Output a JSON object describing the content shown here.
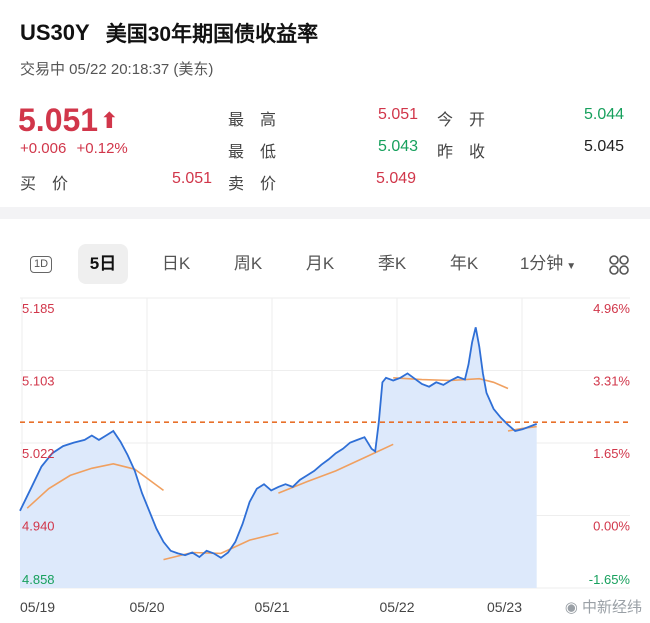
{
  "header": {
    "symbol": "US30Y",
    "name": "美国30年期国债收益率",
    "status": "交易中 05/22 20:18:37 (美东)"
  },
  "quote": {
    "price": "5.051",
    "arrow": "⬆",
    "change": "+0.006",
    "change_pct": "+0.12%",
    "high_label": "最　高",
    "high": "5.051",
    "open_label": "今　开",
    "open": "5.044",
    "low_label": "最　低",
    "low": "5.043",
    "prev_close_label": "昨　收",
    "prev_close": "5.045",
    "bid_label": "买　价",
    "bid": "5.051",
    "ask_label": "卖　价",
    "ask": "5.049"
  },
  "tabs": [
    {
      "label": "1D",
      "selected": false
    },
    {
      "label": "5日",
      "selected": true
    },
    {
      "label": "日K",
      "selected": false
    },
    {
      "label": "周K",
      "selected": false
    },
    {
      "label": "月K",
      "selected": false
    },
    {
      "label": "季K",
      "selected": false
    },
    {
      "label": "年K",
      "selected": false
    },
    {
      "label": "1分钟",
      "selected": false
    }
  ],
  "colors": {
    "up": "#d1364a",
    "down": "#17a05d",
    "line": "#2f6fd6",
    "area": "#dde9fb",
    "ma": "#f0a060",
    "ref": "#e8702a"
  },
  "chart_data": {
    "type": "line",
    "x_labels": [
      "05/19",
      "05/20",
      "05/21",
      "05/22",
      "05/23"
    ],
    "y_left_ticks": [
      "5.185",
      "5.103",
      "5.022",
      "4.940",
      "4.858"
    ],
    "y_right_ticks": [
      "4.96%",
      "3.31%",
      "1.65%",
      "0.00%",
      "-1.65%"
    ],
    "ylim": [
      4.858,
      5.185
    ],
    "reference_line": 5.045,
    "price_series": [
      [
        0,
        4.945
      ],
      [
        3,
        4.97
      ],
      [
        6,
        4.995
      ],
      [
        9,
        5.01
      ],
      [
        12,
        5.018
      ],
      [
        15,
        5.022
      ],
      [
        18,
        5.025
      ],
      [
        20,
        5.03
      ],
      [
        22,
        5.025
      ],
      [
        24,
        5.03
      ],
      [
        26,
        5.035
      ],
      [
        28,
        5.023
      ],
      [
        30,
        5.008
      ],
      [
        32,
        4.99
      ],
      [
        34,
        4.965
      ],
      [
        36,
        4.945
      ],
      [
        38,
        4.925
      ],
      [
        40,
        4.91
      ],
      [
        42,
        4.9
      ],
      [
        44,
        4.897
      ],
      [
        46,
        4.895
      ],
      [
        48,
        4.898
      ],
      [
        50,
        4.893
      ],
      [
        52,
        4.9
      ],
      [
        54,
        4.897
      ],
      [
        56,
        4.892
      ],
      [
        58,
        4.898
      ],
      [
        60,
        4.91
      ],
      [
        62,
        4.93
      ],
      [
        64,
        4.955
      ],
      [
        66,
        4.97
      ],
      [
        68,
        4.975
      ],
      [
        70,
        4.968
      ],
      [
        72,
        4.972
      ],
      [
        74,
        4.975
      ],
      [
        76,
        4.972
      ],
      [
        78,
        4.98
      ],
      [
        80,
        4.985
      ],
      [
        82,
        4.99
      ],
      [
        84,
        4.997
      ],
      [
        86,
        5.003
      ],
      [
        88,
        5.01
      ],
      [
        90,
        5.015
      ],
      [
        92,
        5.022
      ],
      [
        94,
        5.025
      ],
      [
        96,
        5.028
      ],
      [
        98,
        5.015
      ],
      [
        99,
        5.012
      ],
      [
        100,
        5.045
      ],
      [
        101,
        5.09
      ],
      [
        102,
        5.095
      ],
      [
        104,
        5.092
      ],
      [
        106,
        5.095
      ],
      [
        108,
        5.1
      ],
      [
        110,
        5.094
      ],
      [
        112,
        5.088
      ],
      [
        114,
        5.085
      ],
      [
        116,
        5.09
      ],
      [
        118,
        5.087
      ],
      [
        120,
        5.092
      ],
      [
        122,
        5.096
      ],
      [
        124,
        5.093
      ],
      [
        125,
        5.11
      ],
      [
        126,
        5.135
      ],
      [
        127,
        5.152
      ],
      [
        128,
        5.13
      ],
      [
        129,
        5.1
      ],
      [
        130,
        5.078
      ],
      [
        132,
        5.06
      ],
      [
        134,
        5.05
      ],
      [
        136,
        5.042
      ],
      [
        138,
        5.035
      ],
      [
        140,
        5.037
      ],
      [
        142,
        5.04
      ],
      [
        144,
        5.043
      ]
    ],
    "ma_series": [
      [
        [
          2,
          4.948
        ],
        [
          8,
          4.97
        ],
        [
          14,
          4.985
        ],
        [
          20,
          4.993
        ],
        [
          26,
          4.998
        ],
        [
          32,
          4.992
        ],
        [
          40,
          4.968
        ]
      ],
      [
        [
          40,
          4.89
        ],
        [
          48,
          4.898
        ],
        [
          56,
          4.897
        ],
        [
          64,
          4.912
        ],
        [
          72,
          4.92
        ]
      ],
      [
        [
          72,
          4.965
        ],
        [
          80,
          4.978
        ],
        [
          88,
          4.99
        ],
        [
          96,
          5.005
        ],
        [
          104,
          5.02
        ]
      ],
      [
        [
          104,
          5.095
        ],
        [
          112,
          5.093
        ],
        [
          120,
          5.092
        ],
        [
          128,
          5.094
        ],
        [
          132,
          5.09
        ],
        [
          136,
          5.083
        ]
      ],
      [
        [
          136,
          5.035
        ],
        [
          140,
          5.038
        ],
        [
          144,
          5.04
        ]
      ]
    ],
    "x_max": 170
  },
  "watermark": "中新经纬"
}
